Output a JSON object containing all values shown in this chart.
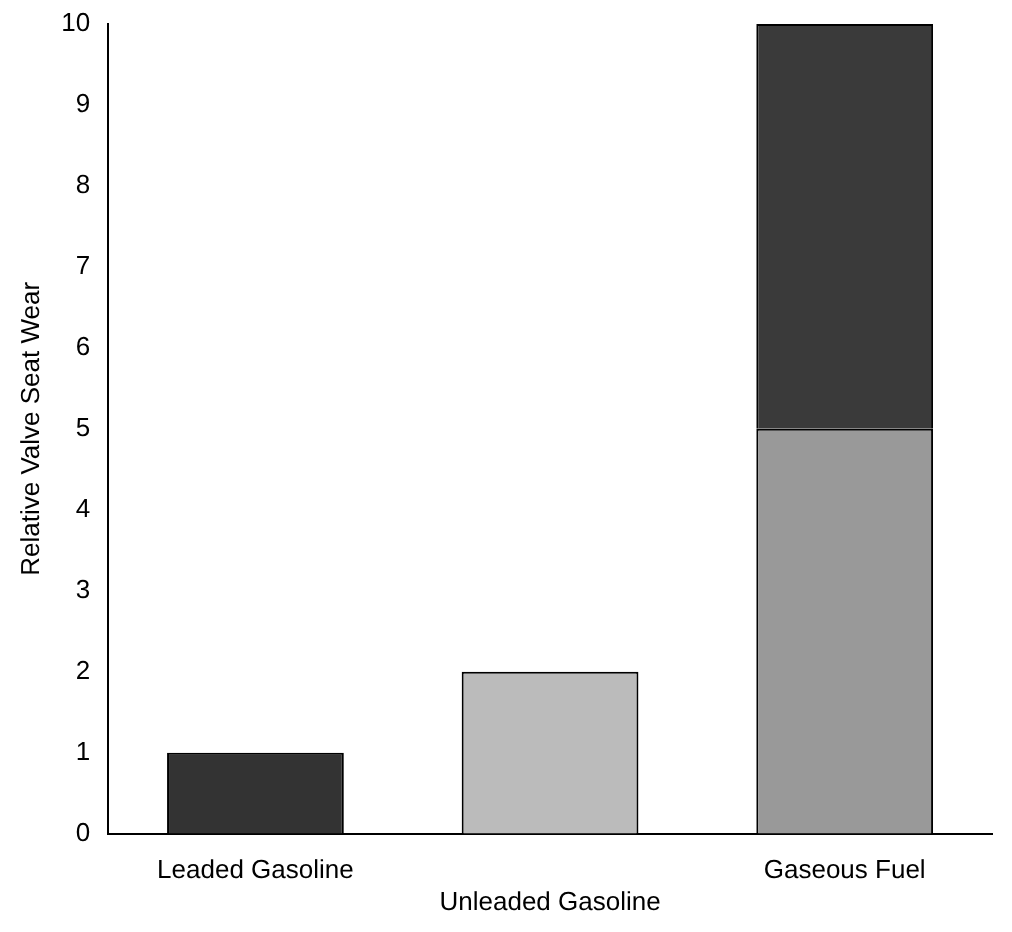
{
  "chart_data": {
    "type": "bar",
    "ylabel": "Relative Valve Seat Wear",
    "categories": [
      "Leaded Gasoline",
      "Unleaded Gasoline",
      "Gaseous Fuel"
    ],
    "stacked": true,
    "series": [
      {
        "colors": [
          "#333333",
          "#bbbbbb",
          "#999999"
        ],
        "values": [
          1,
          2,
          5
        ]
      },
      {
        "color": "#3a3a3a",
        "values": [
          null,
          null,
          5
        ]
      }
    ],
    "ylim": [
      0,
      10
    ],
    "yticks": [
      0,
      1,
      2,
      3,
      4,
      5,
      6,
      7,
      8,
      9,
      10
    ],
    "grid": false,
    "legend": false
  }
}
